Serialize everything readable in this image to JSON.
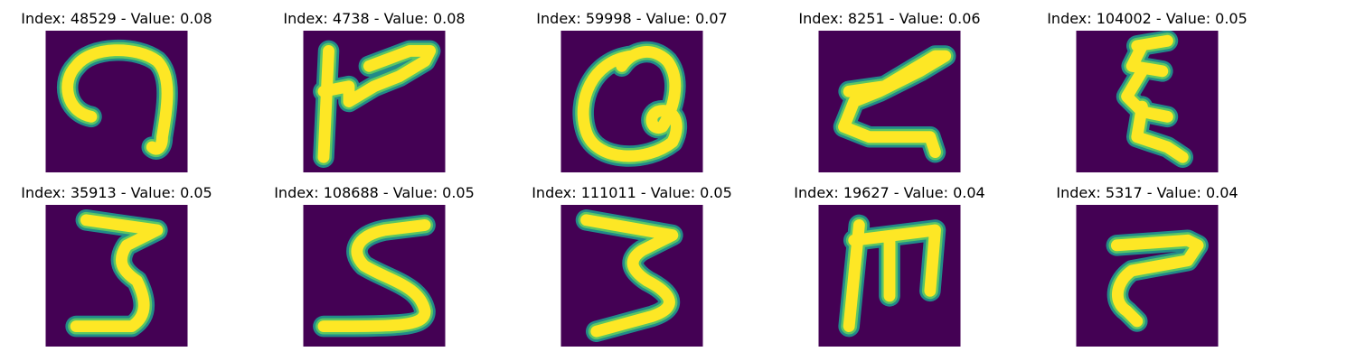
{
  "colors": {
    "background": "#440154",
    "mid": "#21918c",
    "light": "#5ec962",
    "stroke": "#fde725"
  },
  "panels": [
    {
      "title": "Index: 48529 - Value: 0.08",
      "index": 48529,
      "value": 0.08,
      "glyph": "hook-nine"
    },
    {
      "title": "Index: 4738 - Value: 0.08",
      "index": 4738,
      "value": 0.08,
      "glyph": "tick-seven"
    },
    {
      "title": "Index: 59998 - Value: 0.07",
      "index": 59998,
      "value": 0.07,
      "glyph": "loop-a"
    },
    {
      "title": "Index: 8251 - Value: 0.06",
      "index": 8251,
      "value": 0.06,
      "glyph": "zigzag-z"
    },
    {
      "title": "Index: 104002 - Value: 0.05",
      "index": 104002,
      "value": 0.05,
      "glyph": "squiggle-e"
    },
    {
      "title": "Index: 35913 - Value: 0.05",
      "index": 35913,
      "value": 0.05,
      "glyph": "three-a"
    },
    {
      "title": "Index: 108688 - Value: 0.05",
      "index": 108688,
      "value": 0.05,
      "glyph": "five"
    },
    {
      "title": "Index: 111011 - Value: 0.05",
      "index": 111011,
      "value": 0.05,
      "glyph": "three-b"
    },
    {
      "title": "Index: 19627 - Value: 0.04",
      "index": 19627,
      "value": 0.04,
      "glyph": "m-shape"
    },
    {
      "title": "Index: 5317 - Value: 0.04",
      "index": 5317,
      "value": 0.04,
      "glyph": "flag-seven"
    }
  ]
}
